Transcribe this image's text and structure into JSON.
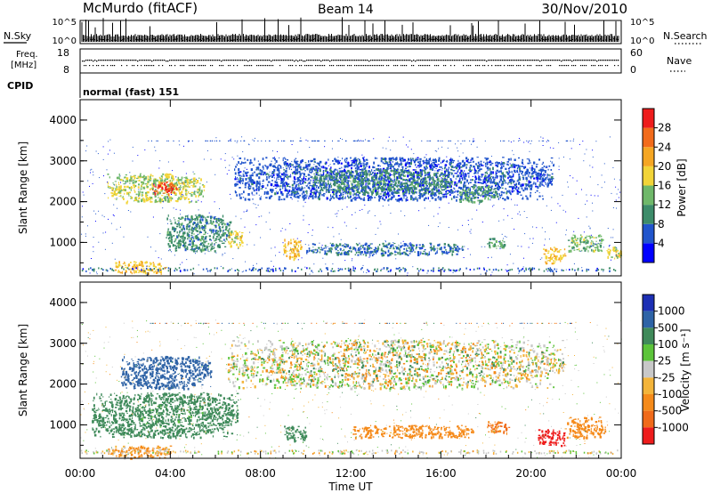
{
  "header": {
    "station": "McMurdo (fitACF)",
    "beam": "Beam 14",
    "date": "30/Nov/2010"
  },
  "nsky_panel": {
    "left_label": "N.Sky",
    "right_label": "N.Search",
    "left_ticks": [
      "10^5",
      "10^0"
    ],
    "right_ticks": [
      "10^5",
      "10^0"
    ]
  },
  "freq_panel": {
    "left_label_line1": "Freq.",
    "left_label_line2": "[MHz]",
    "right_label": "Nave",
    "left_ticks": [
      "18",
      "8"
    ],
    "right_ticks": [
      "60",
      "0"
    ]
  },
  "cpid": {
    "label": "CPID",
    "value": "normal (fast) 151"
  },
  "colors": {
    "power": [
      "#0000ff",
      "#2155cc",
      "#3d8c6a",
      "#6fb86a",
      "#f2d438",
      "#f5a623",
      "#f26b1b",
      "#ee1c1c"
    ],
    "velocity": [
      "#1c2fb4",
      "#2e63a6",
      "#3f8a5a",
      "#5cc43a",
      "#c8c8c8",
      "#f3b43a",
      "#f58a1a",
      "#f06a1a",
      "#ee1c1c"
    ]
  },
  "chart_data": [
    {
      "type": "heatmap",
      "title": "Power",
      "ylabel": "Slant Range [km]",
      "ylim": [
        180,
        4500
      ],
      "y_ticks": [
        "1000",
        "2000",
        "3000",
        "4000"
      ],
      "xlim": [
        "00:00",
        "24:00"
      ],
      "colorbar_label": "Power [dB]",
      "colorbar_ticks": [
        "4",
        "8",
        "12",
        "16",
        "20",
        "24",
        "28"
      ],
      "colorbar_range": [
        0,
        32
      ],
      "regions": [
        {
          "t_start": 1.2,
          "t_end": 5.5,
          "range_start": 2000,
          "range_end": 2700,
          "value": 16
        },
        {
          "t_start": 3.2,
          "t_end": 4.3,
          "range_start": 2200,
          "range_end": 2500,
          "value": 28
        },
        {
          "t_start": 6.8,
          "t_end": 21.0,
          "range_start": 2050,
          "range_end": 3100,
          "value": 6
        },
        {
          "t_start": 10.3,
          "t_end": 16.5,
          "range_start": 2200,
          "range_end": 2800,
          "value": 10
        },
        {
          "t_start": 16.8,
          "t_end": 18.5,
          "range_start": 2000,
          "range_end": 2400,
          "value": 12
        },
        {
          "t_start": 3.8,
          "t_end": 6.7,
          "range_start": 800,
          "range_end": 1700,
          "value": 10
        },
        {
          "t_start": 6.5,
          "t_end": 7.2,
          "range_start": 900,
          "range_end": 1300,
          "value": 18
        },
        {
          "t_start": 9.0,
          "t_end": 9.8,
          "range_start": 600,
          "range_end": 1100,
          "value": 20
        },
        {
          "t_start": 10.0,
          "t_end": 17.0,
          "range_start": 700,
          "range_end": 1000,
          "value": 8
        },
        {
          "t_start": 18.0,
          "t_end": 18.8,
          "range_start": 850,
          "range_end": 1150,
          "value": 12
        },
        {
          "t_start": 20.5,
          "t_end": 21.5,
          "range_start": 500,
          "range_end": 900,
          "value": 20
        },
        {
          "t_start": 21.6,
          "t_end": 23.2,
          "range_start": 800,
          "range_end": 1200,
          "value": 14
        },
        {
          "t_start": 23.3,
          "t_end": 24.0,
          "range_start": 600,
          "range_end": 900,
          "value": 18
        },
        {
          "t_start": 1.5,
          "t_end": 3.8,
          "range_start": 250,
          "range_end": 550,
          "value": 20
        }
      ]
    },
    {
      "type": "heatmap",
      "title": "Velocity",
      "ylabel": "Slant Range [km]",
      "xlabel": "Time UT",
      "ylim": [
        180,
        4500
      ],
      "y_ticks": [
        "1000",
        "2000",
        "3000",
        "4000"
      ],
      "x_ticks": [
        "00:00",
        "04:00",
        "08:00",
        "12:00",
        "16:00",
        "20:00",
        "00:00"
      ],
      "colorbar_label": "Velocity [m s⁻¹]",
      "colorbar_ticks": [
        "1000",
        "500",
        "100",
        "25",
        "-25",
        "-100",
        "-500",
        "-1000"
      ],
      "regions": [
        {
          "t_start": 1.8,
          "t_end": 5.8,
          "range_start": 1900,
          "range_end": 2700,
          "value": 600
        },
        {
          "t_start": 6.5,
          "t_end": 21.5,
          "range_start": 1900,
          "range_end": 3100,
          "value": 0
        },
        {
          "t_start": 0.5,
          "t_end": 7.0,
          "range_start": 700,
          "range_end": 1800,
          "value": 150
        },
        {
          "t_start": 9.0,
          "t_end": 10.0,
          "range_start": 600,
          "range_end": 1000,
          "value": 200
        },
        {
          "t_start": 12.0,
          "t_end": 17.5,
          "range_start": 700,
          "range_end": 1000,
          "value": -150
        },
        {
          "t_start": 18.0,
          "t_end": 19.0,
          "range_start": 800,
          "range_end": 1100,
          "value": -300
        },
        {
          "t_start": 20.3,
          "t_end": 21.5,
          "range_start": 500,
          "range_end": 900,
          "value": -900
        },
        {
          "t_start": 21.5,
          "t_end": 23.3,
          "range_start": 700,
          "range_end": 1200,
          "value": -200
        },
        {
          "t_start": 1.2,
          "t_end": 4.0,
          "range_start": 200,
          "range_end": 500,
          "value": -80
        }
      ]
    }
  ]
}
